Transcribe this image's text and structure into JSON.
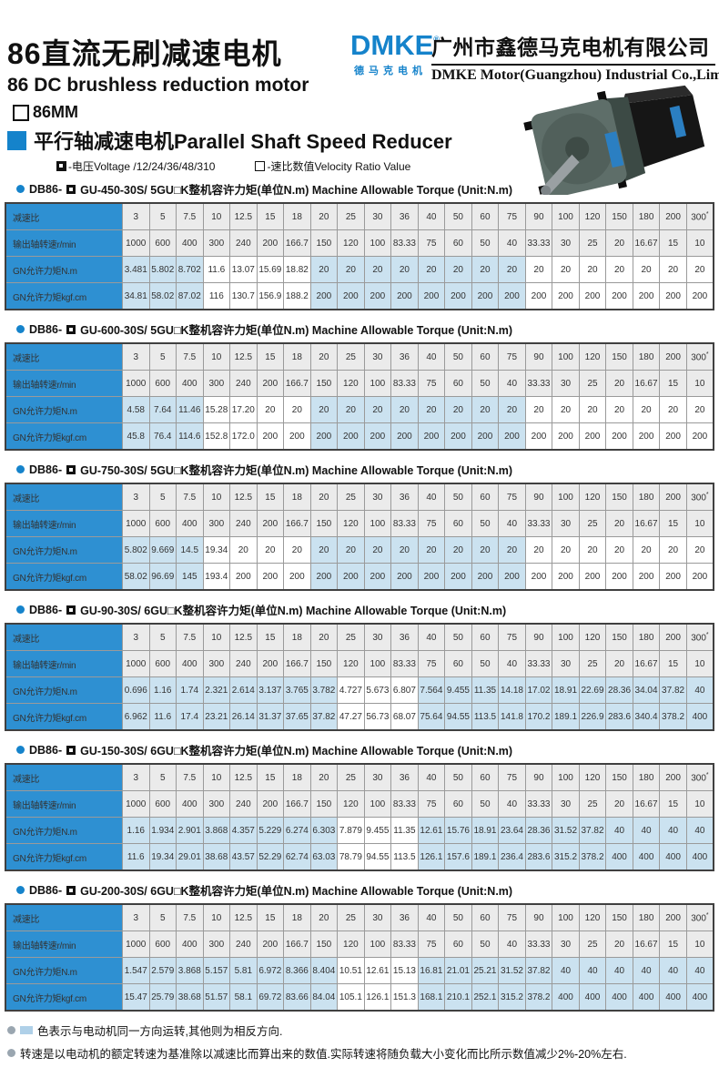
{
  "header": {
    "title_cn": "86直流无刷减速电机",
    "title_en": "86 DC brushless reduction motor",
    "size_label": "86MM",
    "section_title": "平行轴减速电机Parallel Shaft Speed Reducer",
    "logo_text": "DMKE",
    "logo_reg": "®",
    "logo_sub": "德马克电机",
    "company_cn": "广州市鑫德马克电机有限公司",
    "company_en": "DMKE Motor(Guangzhou) Industrial Co.,Limited"
  },
  "legend": {
    "voltage_label": "-电压Voltage /12/24/36/48/310",
    "ratio_label": "-速比数值Velocity Ratio Value"
  },
  "colors": {
    "brand_blue": "#1583CB",
    "table_header_blue": "#2E90D2",
    "highlight_blue": "#CBE2F0",
    "gray_cell": "#EBEBEB"
  },
  "row_labels": {
    "ratio": "减速比",
    "speed": "输出轴转速r/min",
    "nm": "GN允许力矩N.m",
    "kgf": "GN允许力矩kgf.cm"
  },
  "ratios": [
    "3",
    "5",
    "7.5",
    "10",
    "12.5",
    "15",
    "18",
    "20",
    "25",
    "30",
    "36",
    "40",
    "50",
    "60",
    "75",
    "90",
    "100",
    "120",
    "150",
    "180",
    "200",
    "300*"
  ],
  "speeds": [
    "1000",
    "600",
    "400",
    "300",
    "240",
    "200",
    "166.7",
    "150",
    "120",
    "100",
    "83.33",
    "75",
    "60",
    "50",
    "40",
    "33.33",
    "30",
    "25",
    "20",
    "16.67",
    "15",
    "10"
  ],
  "tables": [
    {
      "id": "450",
      "title_prefix": "DB86-",
      "title_model": "GU-450-30S/ 5GU□K",
      "title_rest": "整机容许力矩(单位N.m) Machine Allowable Torque (Unit:N.m)",
      "nm": [
        "3.481",
        "5.802",
        "8.702",
        "11.6",
        "13.07",
        "15.69",
        "18.82",
        "20",
        "20",
        "20",
        "20",
        "20",
        "20",
        "20",
        "20",
        "20",
        "20",
        "20",
        "20",
        "20",
        "20",
        "20"
      ],
      "kgf": [
        "34.81",
        "58.02",
        "87.02",
        "116",
        "130.7",
        "156.9",
        "188.2",
        "200",
        "200",
        "200",
        "200",
        "200",
        "200",
        "200",
        "200",
        "200",
        "200",
        "200",
        "200",
        "200",
        "200",
        "200"
      ],
      "shade": [
        [
          0,
          2
        ],
        [
          7,
          14
        ]
      ]
    },
    {
      "id": "600",
      "title_prefix": "DB86-",
      "title_model": "GU-600-30S/ 5GU□K",
      "title_rest": "整机容许力矩(单位N.m) Machine Allowable Torque (Unit:N.m)",
      "nm": [
        "4.58",
        "7.64",
        "11.46",
        "15.28",
        "17.20",
        "20",
        "20",
        "20",
        "20",
        "20",
        "20",
        "20",
        "20",
        "20",
        "20",
        "20",
        "20",
        "20",
        "20",
        "20",
        "20",
        "20"
      ],
      "kgf": [
        "45.8",
        "76.4",
        "114.6",
        "152.8",
        "172.0",
        "200",
        "200",
        "200",
        "200",
        "200",
        "200",
        "200",
        "200",
        "200",
        "200",
        "200",
        "200",
        "200",
        "200",
        "200",
        "200",
        "200"
      ],
      "shade": [
        [
          0,
          2
        ],
        [
          7,
          14
        ]
      ]
    },
    {
      "id": "750",
      "title_prefix": "DB86-",
      "title_model": "GU-750-30S/ 5GU□K",
      "title_rest": "整机容许力矩(单位N.m) Machine Allowable Torque (Unit:N.m)",
      "nm": [
        "5.802",
        "9.669",
        "14.5",
        "19.34",
        "20",
        "20",
        "20",
        "20",
        "20",
        "20",
        "20",
        "20",
        "20",
        "20",
        "20",
        "20",
        "20",
        "20",
        "20",
        "20",
        "20",
        "20"
      ],
      "kgf": [
        "58.02",
        "96.69",
        "145",
        "193.4",
        "200",
        "200",
        "200",
        "200",
        "200",
        "200",
        "200",
        "200",
        "200",
        "200",
        "200",
        "200",
        "200",
        "200",
        "200",
        "200",
        "200",
        "200"
      ],
      "shade": [
        [
          0,
          2
        ],
        [
          7,
          14
        ]
      ]
    },
    {
      "id": "90",
      "title_prefix": "DB86-",
      "title_model": "GU-90-30S/ 6GU□K",
      "title_rest": "整机容许力矩(单位N.m) Machine Allowable Torque (Unit:N.m)",
      "nm": [
        "0.696",
        "1.16",
        "1.74",
        "2.321",
        "2.614",
        "3.137",
        "3.765",
        "3.782",
        "4.727",
        "5.673",
        "6.807",
        "7.564",
        "9.455",
        "11.35",
        "14.18",
        "17.02",
        "18.91",
        "22.69",
        "28.36",
        "34.04",
        "37.82",
        "40"
      ],
      "kgf": [
        "6.962",
        "11.6",
        "17.4",
        "23.21",
        "26.14",
        "31.37",
        "37.65",
        "37.82",
        "47.27",
        "56.73",
        "68.07",
        "75.64",
        "94.55",
        "113.5",
        "141.8",
        "170.2",
        "189.1",
        "226.9",
        "283.6",
        "340.4",
        "378.2",
        "400"
      ],
      "shade": [
        [
          0,
          7
        ],
        [
          11,
          21
        ]
      ]
    },
    {
      "id": "150",
      "title_prefix": "DB86-",
      "title_model": "GU-150-30S/ 6GU□K",
      "title_rest": "整机容许力矩(单位N.m) Machine Allowable Torque (Unit:N.m)",
      "nm": [
        "1.16",
        "1.934",
        "2.901",
        "3.868",
        "4.357",
        "5.229",
        "6.274",
        "6.303",
        "7.879",
        "9.455",
        "11.35",
        "12.61",
        "15.76",
        "18.91",
        "23.64",
        "28.36",
        "31.52",
        "37.82",
        "40",
        "40",
        "40",
        "40"
      ],
      "kgf": [
        "11.6",
        "19.34",
        "29.01",
        "38.68",
        "43.57",
        "52.29",
        "62.74",
        "63.03",
        "78.79",
        "94.55",
        "113.5",
        "126.1",
        "157.6",
        "189.1",
        "236.4",
        "283.6",
        "315.2",
        "378.2",
        "400",
        "400",
        "400",
        "400"
      ],
      "shade": [
        [
          0,
          7
        ],
        [
          11,
          21
        ]
      ]
    },
    {
      "id": "200",
      "title_prefix": "DB86-",
      "title_model": "GU-200-30S/ 6GU□K",
      "title_rest": "整机容许力矩(单位N.m) Machine Allowable Torque (Unit:N.m)",
      "nm": [
        "1.547",
        "2.579",
        "3.868",
        "5.157",
        "5.81",
        "6.972",
        "8.366",
        "8.404",
        "10.51",
        "12.61",
        "15.13",
        "16.81",
        "21.01",
        "25.21",
        "31.52",
        "37.82",
        "40",
        "40",
        "40",
        "40",
        "40",
        "40"
      ],
      "kgf": [
        "15.47",
        "25.79",
        "38.68",
        "51.57",
        "58.1",
        "69.72",
        "83.66",
        "84.04",
        "105.1",
        "126.1",
        "151.3",
        "168.1",
        "210.1",
        "252.1",
        "315.2",
        "378.2",
        "400",
        "400",
        "400",
        "400",
        "400",
        "400"
      ],
      "shade": [
        [
          0,
          7
        ],
        [
          11,
          21
        ]
      ]
    }
  ],
  "notes": {
    "color_note": "色表示与电动机同一方向运转,其他则为相反方向.",
    "speed_note": "转速是以电动机的额定转速为基准除以减速比而算出来的数值.实际转速将随负载大小变化而比所示数值减少2%-20%左右."
  }
}
